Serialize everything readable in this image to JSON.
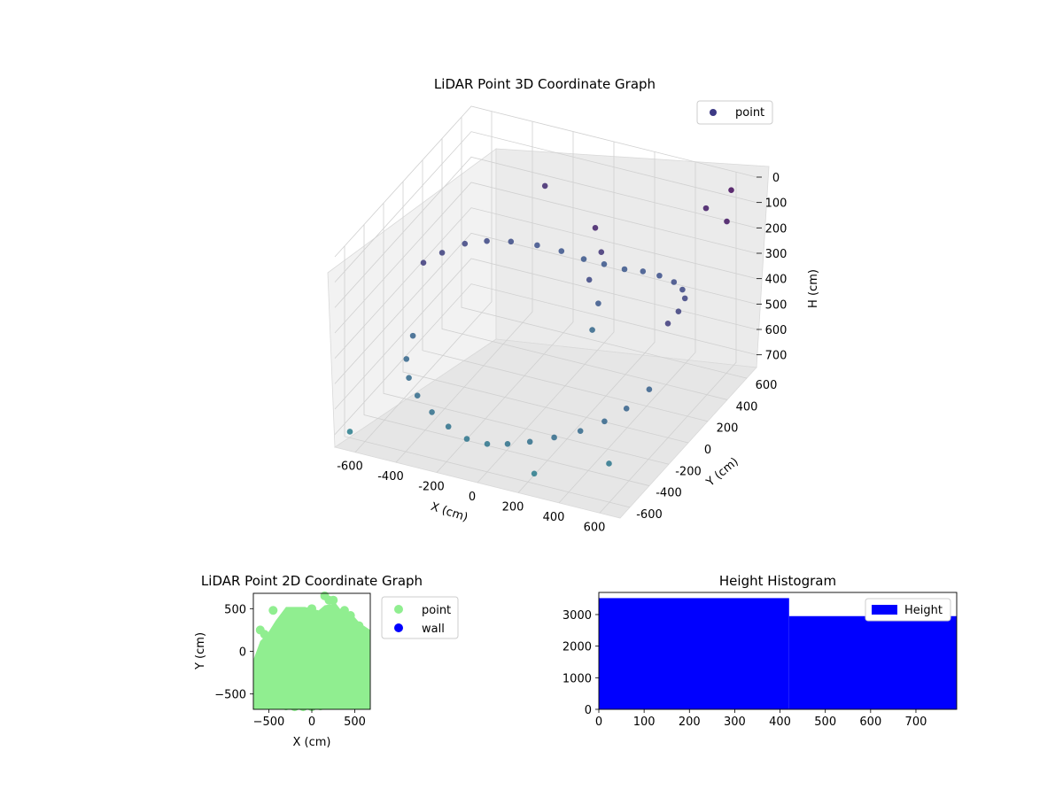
{
  "chart_data": [
    {
      "type": "scatter",
      "projection": "3d",
      "title": "LiDAR Point 3D Coordinate Graph",
      "xlabel": "X (cm)",
      "ylabel": "Y (cm)",
      "zlabel": "H (cm)",
      "xlim": [
        -700,
        700
      ],
      "ylim": [
        -700,
        700
      ],
      "zlim": [
        750,
        0
      ],
      "z_inverted": true,
      "xticks": [
        -600,
        -400,
        -200,
        0,
        200,
        400,
        600
      ],
      "yticks": [
        -600,
        -400,
        -200,
        0,
        200,
        400,
        600
      ],
      "zticks": [
        0,
        100,
        200,
        300,
        400,
        500,
        600,
        700
      ],
      "legend": {
        "labels": [
          "point"
        ],
        "placement": "upper-right"
      },
      "colormap": "viridis",
      "grid": true,
      "series": [
        {
          "name": "point",
          "description_of_shape": "dense cylindrical wall of points around origin with radius ~600 cm spanning heights ~100-700 cm, plus a vertical column near (100, 300) and scattered outliers",
          "x": [
            -600,
            -580,
            -540,
            -480,
            -400,
            -300,
            -200,
            -100,
            0,
            100,
            200,
            300,
            400,
            480,
            540,
            580,
            600,
            580,
            540,
            480,
            400,
            300,
            200,
            100,
            0,
            -100,
            -200,
            -300,
            -400,
            -480,
            -540,
            -580,
            100,
            120,
            80,
            110,
            90,
            600,
            650,
            -650,
            500,
            550,
            -300,
            250
          ],
          "y": [
            0,
            150,
            300,
            400,
            480,
            540,
            580,
            600,
            600,
            600,
            580,
            540,
            480,
            400,
            300,
            150,
            0,
            -150,
            -300,
            -400,
            -480,
            -540,
            -580,
            -600,
            -600,
            -600,
            -580,
            -540,
            -480,
            -400,
            -300,
            -150,
            300,
            320,
            280,
            310,
            290,
            650,
            500,
            -650,
            600,
            -500,
            620,
            -640
          ],
          "z": [
            300,
            320,
            340,
            360,
            380,
            400,
            420,
            440,
            440,
            440,
            420,
            400,
            380,
            360,
            340,
            320,
            300,
            500,
            520,
            540,
            560,
            580,
            600,
            620,
            640,
            640,
            620,
            600,
            580,
            560,
            540,
            520,
            150,
            250,
            350,
            450,
            550,
            50,
            100,
            700,
            120,
            650,
            200,
            690
          ]
        }
      ]
    },
    {
      "type": "scatter",
      "title": "LiDAR Point 2D Coordinate Graph",
      "xlabel": "X (cm)",
      "ylabel": "Y (cm)",
      "xlim": [
        -680,
        680
      ],
      "ylim": [
        -680,
        680
      ],
      "xticks": [
        -500,
        0,
        500
      ],
      "yticks": [
        -500,
        0,
        500
      ],
      "legend": {
        "labels": [
          "point",
          "wall"
        ],
        "placement": "outside-right"
      },
      "series": [
        {
          "name": "point",
          "color": "#90ee90",
          "description_of_shape": "dense filled blob covering nearly the whole -600..600 square with a ragged top edge",
          "x": [
            -600,
            -500,
            -400,
            -300,
            -200,
            -100,
            0,
            100,
            200,
            300,
            400,
            500,
            600,
            -550,
            550,
            -450,
            450,
            0,
            200,
            -200,
            150,
            250,
            380,
            -600
          ],
          "y": [
            -600,
            -620,
            -630,
            -640,
            -650,
            -650,
            -650,
            -640,
            -630,
            -620,
            -600,
            -580,
            -550,
            200,
            300,
            480,
            420,
            500,
            600,
            450,
            650,
            600,
            480,
            250
          ]
        },
        {
          "name": "wall",
          "color": "#0000ff",
          "x": [],
          "y": []
        }
      ]
    },
    {
      "type": "bar",
      "subtype": "histogram",
      "title": "Height Histogram",
      "xlabel": "",
      "ylabel": "",
      "xlim": [
        0,
        790
      ],
      "ylim": [
        0,
        3700
      ],
      "xticks": [
        0,
        100,
        200,
        300,
        400,
        500,
        600,
        700
      ],
      "yticks": [
        0,
        1000,
        2000,
        3000
      ],
      "legend": {
        "labels": [
          "Height"
        ],
        "placement": "upper-right"
      },
      "series": [
        {
          "name": "Height",
          "color": "#0000ff",
          "bins": [
            {
              "start": 0,
              "end": 420,
              "count": 3520
            },
            {
              "start": 420,
              "end": 790,
              "count": 2950
            }
          ]
        }
      ]
    }
  ]
}
